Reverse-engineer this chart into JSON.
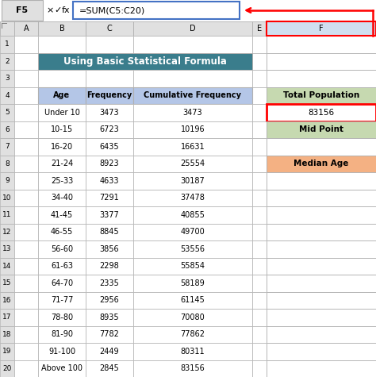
{
  "title": "Using Basic Statistical Formula",
  "title_bg": "#3a7d8c",
  "title_color": "white",
  "header_bg": "#b4c6e7",
  "col_headers": [
    "Age",
    "Frequency",
    "Cumulative Frequency"
  ],
  "rows": [
    [
      "Under 10",
      "3473",
      "3473"
    ],
    [
      "10-15",
      "6723",
      "10196"
    ],
    [
      "16-20",
      "6435",
      "16631"
    ],
    [
      "21-24",
      "8923",
      "25554"
    ],
    [
      "25-33",
      "4633",
      "30187"
    ],
    [
      "34-40",
      "7291",
      "37478"
    ],
    [
      "41-45",
      "3377",
      "40855"
    ],
    [
      "46-55",
      "8845",
      "49700"
    ],
    [
      "56-60",
      "3856",
      "53556"
    ],
    [
      "61-63",
      "2298",
      "55854"
    ],
    [
      "64-70",
      "2335",
      "58189"
    ],
    [
      "71-77",
      "2956",
      "61145"
    ],
    [
      "78-80",
      "8935",
      "70080"
    ],
    [
      "81-90",
      "7782",
      "77862"
    ],
    [
      "91-100",
      "2449",
      "80311"
    ],
    [
      "Above 100",
      "2845",
      "83156"
    ]
  ],
  "side_labels": [
    "Total Population",
    "Mid Point",
    "Median Age"
  ],
  "side_label_bgs": [
    "#c6d9b0",
    "#c6d9b0",
    "#f4b183"
  ],
  "side_value": "83156",
  "formula_bar_text": "=SUM(C5:C20)",
  "cell_ref": "F5",
  "arrow_color": "#ff0000",
  "grid_color": "#b0b0b0",
  "bg_color": "#ffffff",
  "excel_header_bg": "#e0e0e0",
  "formula_bar_border": "#4472c4",
  "selected_col_bg": "#d0dff0",
  "red_border": "#ff0000",
  "row_numbers": [
    1,
    2,
    3,
    4,
    5,
    6,
    7,
    8,
    9,
    10,
    11,
    12,
    13,
    14,
    15,
    16,
    17,
    18,
    19,
    20
  ]
}
